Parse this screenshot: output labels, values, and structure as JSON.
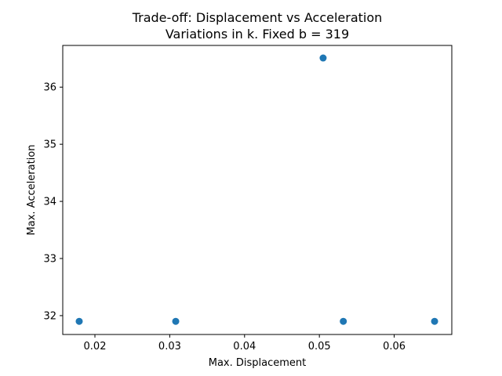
{
  "chart_data": {
    "type": "scatter",
    "title": "Trade-off: Displacement vs Acceleration",
    "subtitle": "Variations in k. Fixed b = 319",
    "xlabel": "Max. Displacement",
    "ylabel": "Max. Acceleration",
    "xlim": [
      0.0157,
      0.0677
    ],
    "ylim": [
      31.67,
      36.73
    ],
    "xticks": [
      0.02,
      0.03,
      0.04,
      0.05,
      0.06
    ],
    "xtick_labels": [
      "0.02",
      "0.03",
      "0.04",
      "0.05",
      "0.06"
    ],
    "yticks": [
      32,
      33,
      34,
      35,
      36
    ],
    "ytick_labels": [
      "32",
      "33",
      "34",
      "35",
      "36"
    ],
    "grid": false,
    "series": [
      {
        "color": "#1f77b4",
        "points": [
          {
            "x": 0.0179,
            "y": 31.9
          },
          {
            "x": 0.0308,
            "y": 31.9
          },
          {
            "x": 0.0505,
            "y": 36.51
          },
          {
            "x": 0.0532,
            "y": 31.9
          },
          {
            "x": 0.0654,
            "y": 31.9
          }
        ]
      }
    ]
  }
}
